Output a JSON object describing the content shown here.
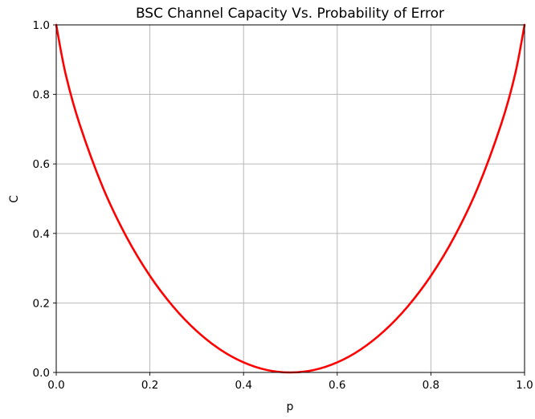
{
  "chart_data": {
    "type": "line",
    "title": "BSC Channel Capacity Vs. Probability of Error",
    "xlabel": "p",
    "ylabel": "C",
    "xlim": [
      0.0,
      1.0
    ],
    "ylim": [
      0.0,
      1.0
    ],
    "xticks": [
      "0.0",
      "0.2",
      "0.4",
      "0.6",
      "0.8",
      "1.0"
    ],
    "yticks": [
      "0.0",
      "0.2",
      "0.4",
      "0.6",
      "0.8",
      "1.0"
    ],
    "grid": true,
    "series": [
      {
        "color": "#ff0000",
        "x": [
          0.0,
          0.02,
          0.05,
          0.1,
          0.15,
          0.2,
          0.25,
          0.3,
          0.35,
          0.4,
          0.45,
          0.5,
          0.55,
          0.6,
          0.65,
          0.7,
          0.75,
          0.8,
          0.85,
          0.9,
          0.95,
          0.98,
          1.0
        ],
        "y": [
          1.0,
          0.859,
          0.714,
          0.531,
          0.39,
          0.278,
          0.189,
          0.119,
          0.066,
          0.029,
          0.007,
          0.0,
          0.007,
          0.029,
          0.066,
          0.119,
          0.189,
          0.278,
          0.39,
          0.531,
          0.714,
          0.859,
          1.0
        ]
      }
    ]
  }
}
